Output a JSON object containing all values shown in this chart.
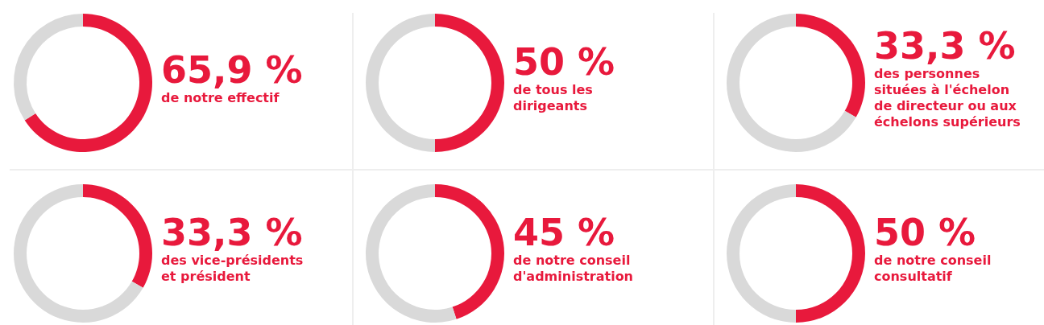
{
  "chart_data": [
    {
      "type": "donut",
      "categories": [
        null,
        null
      ],
      "values": [
        65.9,
        34.1
      ],
      "colors": [
        "#e8193c",
        "#d9d9d9"
      ],
      "value_labels": [
        "65,9 %",
        null
      ],
      "annotations": [
        "de notre effectif"
      ]
    },
    {
      "type": "donut",
      "categories": [
        null,
        null
      ],
      "values": [
        50,
        50
      ],
      "colors": [
        "#e8193c",
        "#d9d9d9"
      ],
      "value_labels": [
        "50 %",
        null
      ],
      "annotations": [
        "de tous les dirigeants"
      ]
    },
    {
      "type": "donut",
      "categories": [
        null,
        null
      ],
      "values": [
        33.3,
        66.7
      ],
      "colors": [
        "#e8193c",
        "#d9d9d9"
      ],
      "value_labels": [
        "33,3 %",
        null
      ],
      "annotations": [
        "des personnes situées à l'échelon de directeur ou aux échelons supérieurs"
      ]
    },
    {
      "type": "donut",
      "categories": [
        null,
        null
      ],
      "values": [
        33.3,
        66.7
      ],
      "colors": [
        "#e8193c",
        "#d9d9d9"
      ],
      "value_labels": [
        "33,3 %",
        null
      ],
      "annotations": [
        "des vice-présidents et président"
      ]
    },
    {
      "type": "donut",
      "categories": [
        null,
        null
      ],
      "values": [
        45,
        55
      ],
      "colors": [
        "#e8193c",
        "#d9d9d9"
      ],
      "value_labels": [
        "45 %",
        null
      ],
      "annotations": [
        "de notre conseil d'administration"
      ]
    },
    {
      "type": "donut",
      "categories": [
        null,
        null
      ],
      "values": [
        50,
        50
      ],
      "colors": [
        "#e8193c",
        "#d9d9d9"
      ],
      "value_labels": [
        "50 %",
        null
      ],
      "annotations": [
        "de notre conseil consultatif"
      ]
    }
  ]
}
